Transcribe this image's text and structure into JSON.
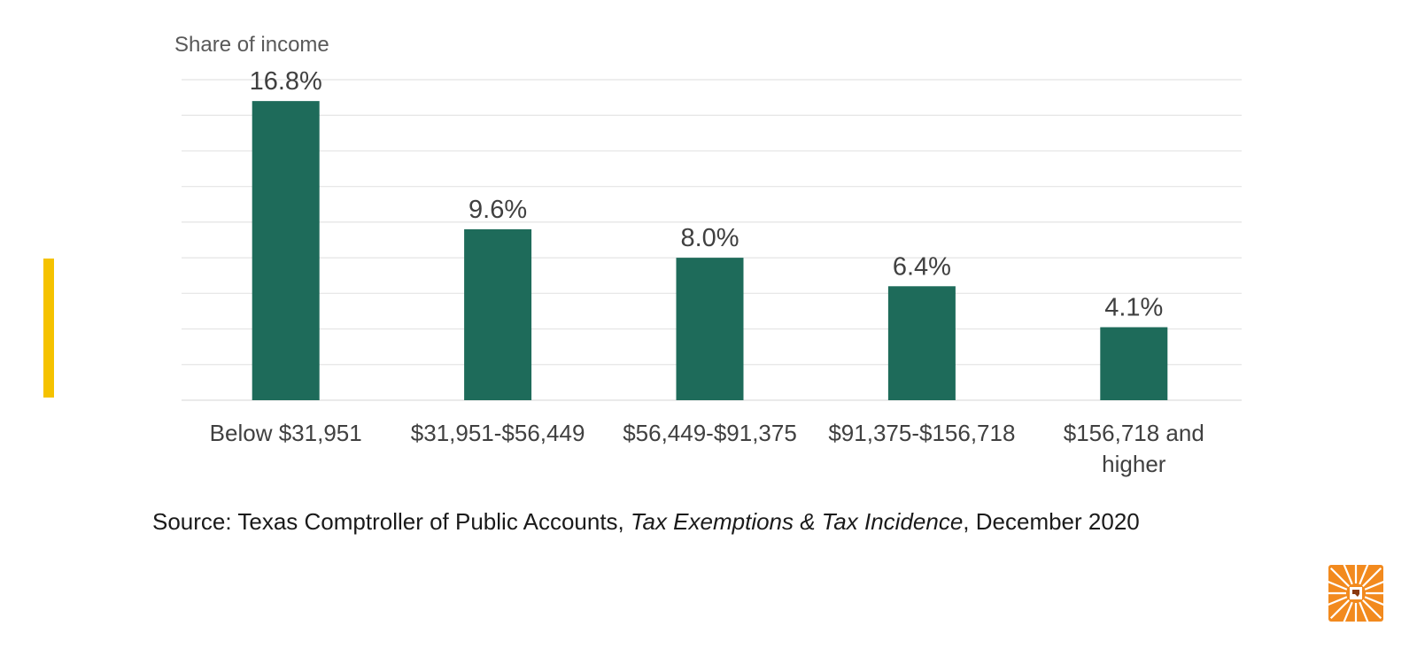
{
  "chart_data": {
    "type": "bar",
    "ylabel": "Share of income",
    "categories": [
      [
        "Below $31,951"
      ],
      [
        "$31,951-$56,449"
      ],
      [
        "$56,449-$91,375"
      ],
      [
        "$91,375-$156,718"
      ],
      [
        "$156,718 and",
        "higher"
      ]
    ],
    "values": [
      16.8,
      9.6,
      8.0,
      6.4,
      4.1
    ],
    "value_labels": [
      "16.8%",
      "9.6%",
      "8.0%",
      "6.4%",
      "4.1%"
    ],
    "ylim": [
      0,
      18
    ],
    "grid": true,
    "legend": "none",
    "bar_color": "#1e6b5a"
  },
  "source": {
    "prefix": "Source:  Texas Comptroller of Public Accounts, ",
    "italic": "Tax Exemptions & Tax Incidence",
    "suffix": ", December 2020"
  },
  "colors": {
    "accent_bar": "#f5c200",
    "grid": "#e4e4e4",
    "logo_bg": "#f28a1e"
  },
  "logo": {
    "icon": "texas-sunburst-icon"
  }
}
